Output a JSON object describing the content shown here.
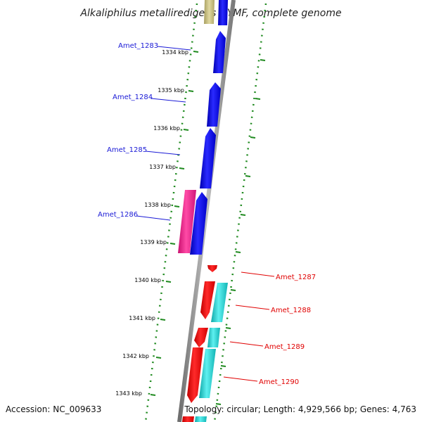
{
  "title": "Alkaliphilus metalliredigens QYMF, complete genome",
  "footer": {
    "accession": "Accession: NC_009633",
    "topology": "Topology: circular; Length: 4,929,566 bp; Genes: 4,763"
  },
  "ticks": [
    "1334 kbp",
    "1335 kbp",
    "1336 kbp",
    "1337 kbp",
    "1338 kbp",
    "1339 kbp",
    "1340 kbp",
    "1341 kbp",
    "1342 kbp",
    "1343 kbp"
  ],
  "genes_left": [
    "Amet_1283",
    "Amet_1284",
    "Amet_1285",
    "Amet_1286"
  ],
  "genes_right": [
    "Amet_1287",
    "Amet_1288",
    "Amet_1289",
    "Amet_1290"
  ],
  "colors": {
    "backbone": "#8c8c8c",
    "tick_green": "#1f8a1f",
    "forward_cds": "#0000dd",
    "reverse_cds": "#ee0000",
    "pink_feature": "#ee1a8c",
    "cyan_feature": "#19c6c6",
    "tan_feature": "#c8bf86"
  }
}
